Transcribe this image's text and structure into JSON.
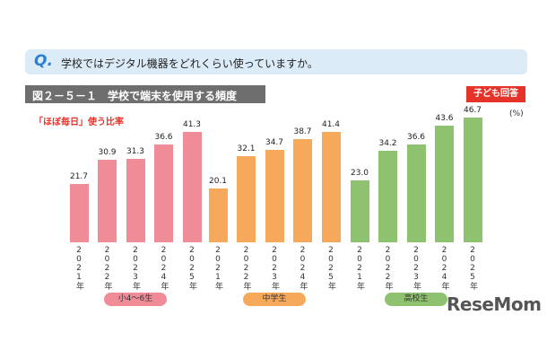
{
  "question": {
    "label": "Q.",
    "text": "学校ではデジタル機器をどれくらい使っていますか。"
  },
  "chart_data": {
    "type": "bar",
    "title": "図２－５－１　学校で端末を使用する頻度",
    "badge": "子ども回答",
    "subtitle": "「ほぼ毎日」使う比率",
    "unit": "(%)",
    "categories": [
      "2021年",
      "2022年",
      "2023年",
      "2024年",
      "2025年"
    ],
    "ylim": [
      0,
      50
    ],
    "series": [
      {
        "name": "小4～6生",
        "color": "#ef8c98",
        "values": [
          21.7,
          30.9,
          31.3,
          36.6,
          41.3
        ]
      },
      {
        "name": "中学生",
        "color": "#f6a95b",
        "values": [
          20.1,
          32.1,
          34.7,
          38.7,
          41.4
        ]
      },
      {
        "name": "高校生",
        "color": "#8fc26e",
        "values": [
          23.0,
          34.2,
          36.6,
          43.6,
          46.7
        ]
      }
    ],
    "value_labels": [
      [
        "21.7",
        "30.9",
        "31.3",
        "36.6",
        "41.3"
      ],
      [
        "20.1",
        "32.1",
        "34.7",
        "38.7",
        "41.4"
      ],
      [
        "23.0",
        "34.2",
        "36.6",
        "43.6",
        "46.7"
      ]
    ]
  },
  "watermark": "ReseMom"
}
